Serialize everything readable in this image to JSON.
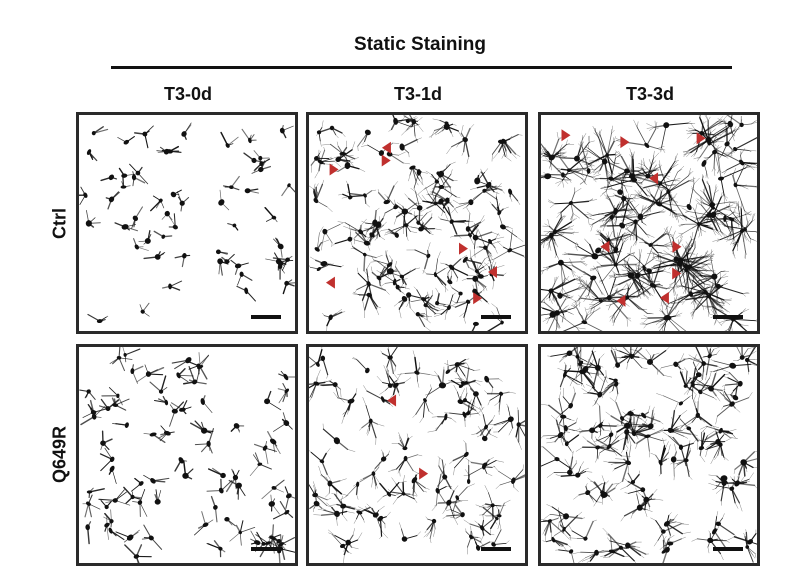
{
  "figure": {
    "header": "Static Staining",
    "columns": [
      "T3-0d",
      "T3-1d",
      "T3-3d"
    ],
    "rows": [
      "Ctrl",
      "Q649R"
    ],
    "colors": {
      "cell": "#111111",
      "arrow": "#c0302e",
      "border": "#2a2a2a",
      "scalebar": "#111111"
    },
    "panels": [
      {
        "row": "Ctrl",
        "column": "T3-0d",
        "arrow_markers": 0
      },
      {
        "row": "Ctrl",
        "column": "T3-1d",
        "arrow_markers": 7
      },
      {
        "row": "Ctrl",
        "column": "T3-3d",
        "arrow_markers": 9
      },
      {
        "row": "Q649R",
        "column": "T3-0d",
        "arrow_markers": 0
      },
      {
        "row": "Q649R",
        "column": "T3-1d",
        "arrow_markers": 2
      },
      {
        "row": "Q649R",
        "column": "T3-3d",
        "arrow_markers": 0
      }
    ]
  }
}
